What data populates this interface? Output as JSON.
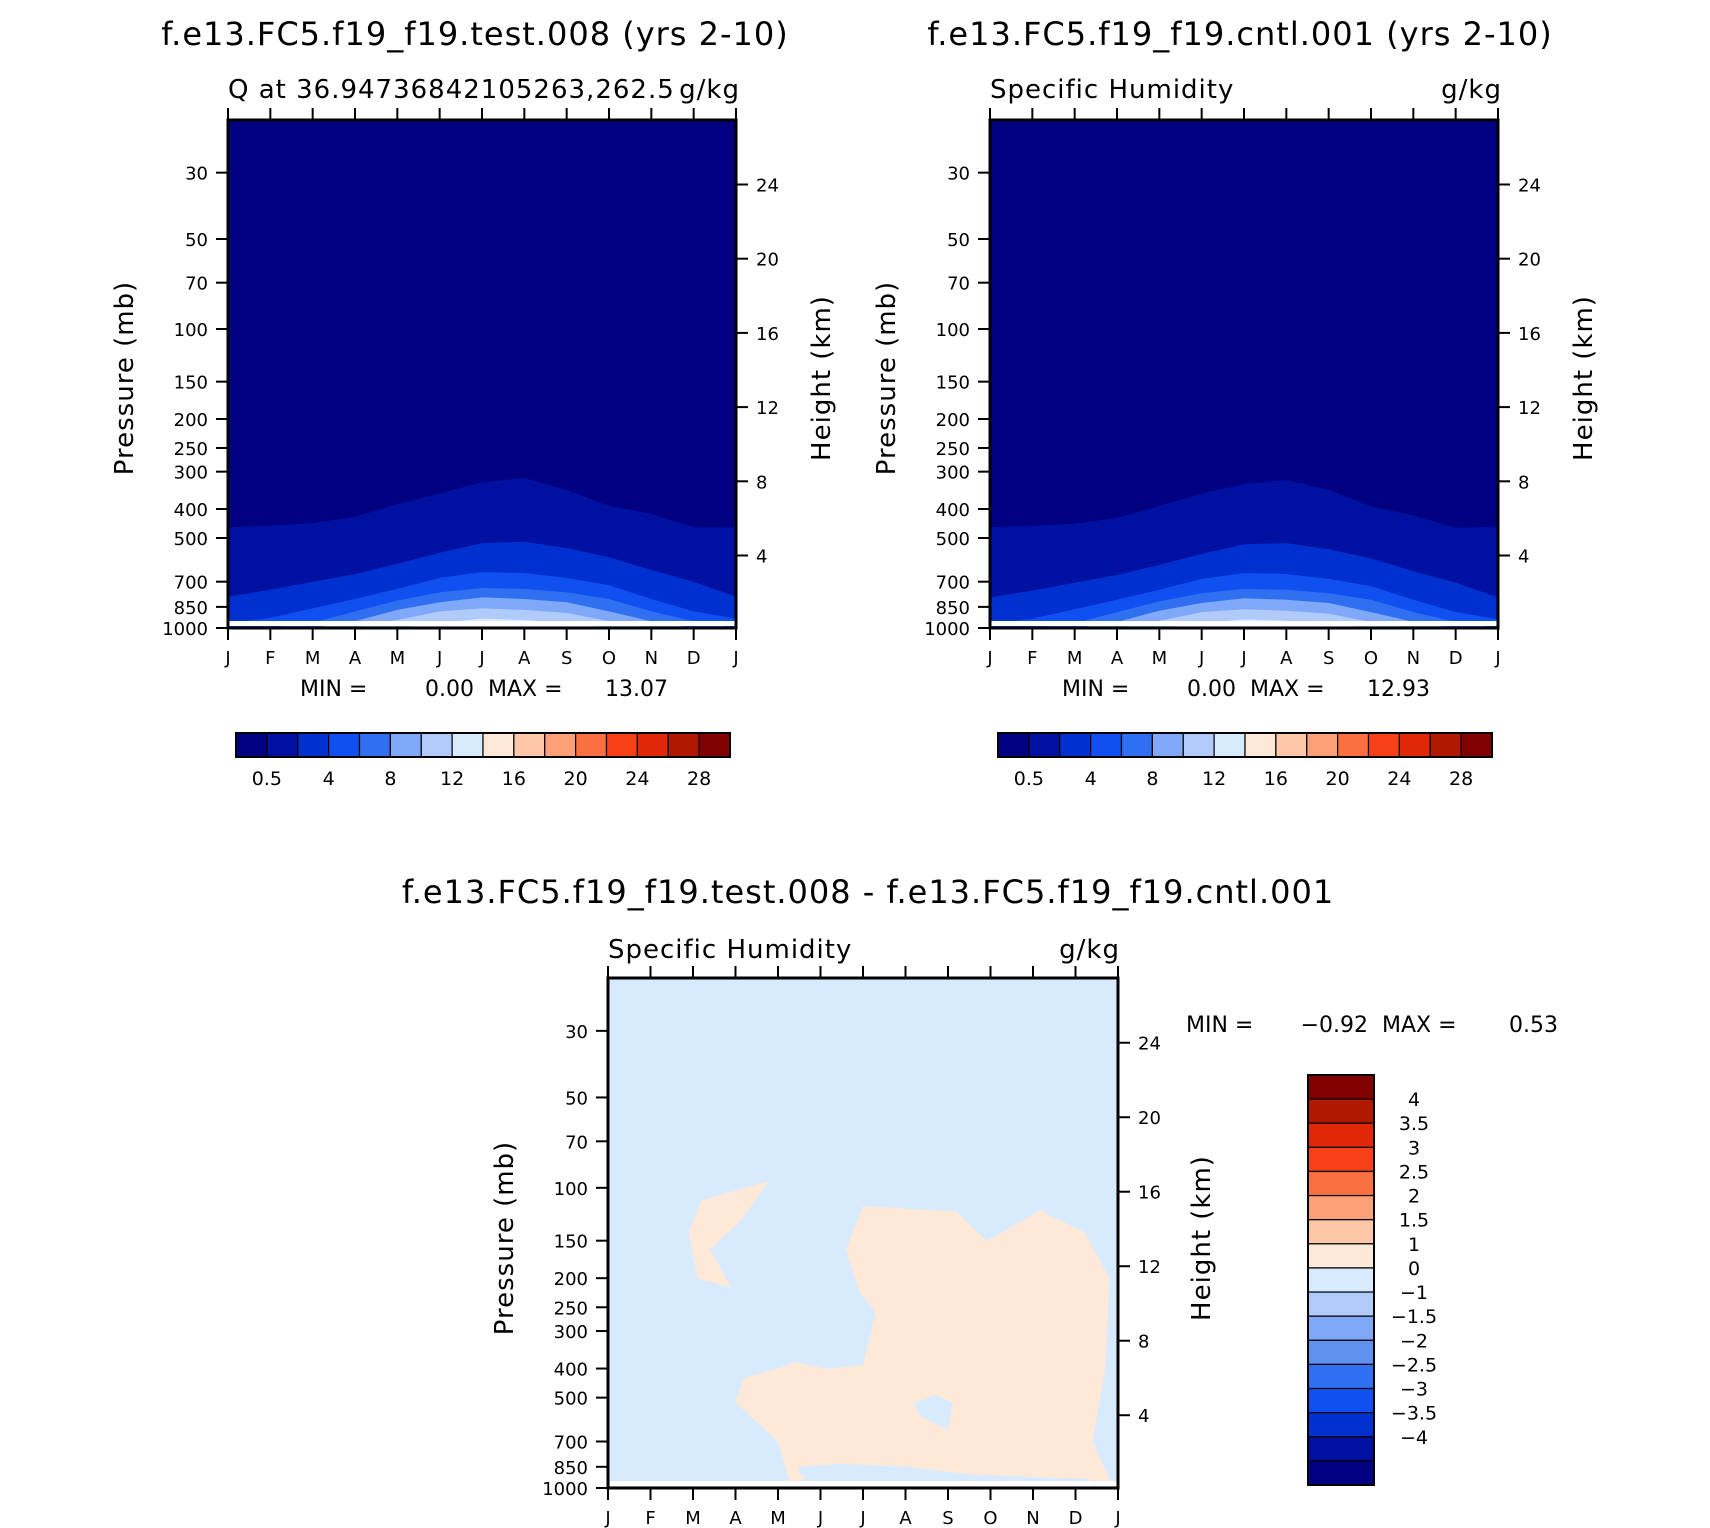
{
  "colors": {
    "seq_palette": [
      "#000080",
      "#0010a0",
      "#0030d0",
      "#1050f0",
      "#3070f0",
      "#80a8f8",
      "#b0cafa",
      "#d8eafe",
      "#fee8d8",
      "#fec8a8",
      "#fca078",
      "#fa7040",
      "#f84018",
      "#e02808",
      "#b01800",
      "#800000"
    ],
    "diff_palette": [
      "#000080",
      "#0010a0",
      "#0030d0",
      "#1050f0",
      "#3070f0",
      "#6090f0",
      "#80a8f8",
      "#b0cafa",
      "#d8eafe",
      "#fee8d8",
      "#fec8a8",
      "#fca078",
      "#fa7040",
      "#f84018",
      "#e02808",
      "#b01800",
      "#800000"
    ]
  },
  "chart_data": [
    {
      "type": "heatmap",
      "title": "f.e13.FC5.f19_f19.test.008 (yrs 2-10)",
      "left_subtitle": "Q at 36.94736842105263,262.5",
      "right_subtitle": "g/kg",
      "ylabel": "Pressure (mb)",
      "ylabel_right": "Height (km)",
      "x_ticks": [
        "J",
        "F",
        "M",
        "A",
        "M",
        "J",
        "J",
        "A",
        "S",
        "O",
        "N",
        "D",
        "J"
      ],
      "y_ticks": [
        30,
        50,
        70,
        100,
        150,
        200,
        250,
        300,
        400,
        500,
        700,
        850,
        1000
      ],
      "y_ticks_right": [
        4,
        8,
        12,
        16,
        20,
        24
      ],
      "ylim": [
        1000,
        20
      ],
      "y_scale": "log",
      "stats": {
        "min_label": "MIN =",
        "min": "0.00",
        "max_label": "MAX =",
        "max": "13.07"
      },
      "colorbar": {
        "orientation": "horizontal",
        "labels": [
          "0.5",
          "4",
          "8",
          "12",
          "16",
          "20",
          "24",
          "28"
        ],
        "levels": [
          0.5,
          2,
          4,
          6,
          8,
          10,
          12,
          14,
          16,
          18,
          20,
          22,
          24,
          26,
          28
        ]
      },
      "contour_pressure_by_month": {
        "months": [
          "J",
          "F",
          "M",
          "A",
          "M",
          "J",
          "J",
          "A",
          "S",
          "O",
          "N",
          "D",
          "J"
        ],
        "levels": {
          "0.5": [
            460,
            455,
            445,
            425,
            385,
            355,
            325,
            315,
            345,
            390,
            415,
            460,
            460
          ],
          "2": [
            785,
            745,
            700,
            660,
            610,
            560,
            520,
            515,
            540,
            580,
            640,
            700,
            785
          ],
          "4": [
            960,
            925,
            860,
            800,
            740,
            680,
            650,
            655,
            680,
            720,
            800,
            880,
            930
          ],
          "6": [
            1000,
            1000,
            960,
            880,
            810,
            760,
            735,
            740,
            760,
            800,
            880,
            950,
            1000
          ],
          "8": [
            1000,
            1000,
            1000,
            950,
            870,
            820,
            790,
            800,
            820,
            880,
            950,
            1000,
            1000
          ],
          "10": [
            1000,
            1000,
            1000,
            1000,
            940,
            880,
            860,
            870,
            890,
            950,
            1000,
            1000,
            1000
          ],
          "12": [
            1000,
            1000,
            1000,
            1000,
            1000,
            960,
            930,
            940,
            960,
            1000,
            1000,
            1000,
            1000
          ],
          "14": [
            1000,
            1000,
            1000,
            1000,
            1000,
            1000,
            985,
            990,
            1000,
            1000,
            1000,
            1000,
            1000
          ]
        }
      }
    },
    {
      "type": "heatmap",
      "title": "f.e13.FC5.f19_f19.cntl.001 (yrs 2-10)",
      "left_subtitle": "Specific Humidity",
      "right_subtitle": "g/kg",
      "ylabel": "Pressure (mb)",
      "ylabel_right": "Height (km)",
      "x_ticks": [
        "J",
        "F",
        "M",
        "A",
        "M",
        "J",
        "J",
        "A",
        "S",
        "O",
        "N",
        "D",
        "J"
      ],
      "y_ticks": [
        30,
        50,
        70,
        100,
        150,
        200,
        250,
        300,
        400,
        500,
        700,
        850,
        1000
      ],
      "y_ticks_right": [
        4,
        8,
        12,
        16,
        20,
        24
      ],
      "ylim": [
        1000,
        20
      ],
      "y_scale": "log",
      "stats": {
        "min_label": "MIN =",
        "min": "0.00",
        "max_label": "MAX =",
        "max": "12.93"
      },
      "colorbar": {
        "orientation": "horizontal",
        "labels": [
          "0.5",
          "4",
          "8",
          "12",
          "16",
          "20",
          "24",
          "28"
        ],
        "levels": [
          0.5,
          2,
          4,
          6,
          8,
          10,
          12,
          14,
          16,
          18,
          20,
          22,
          24,
          26,
          28
        ]
      },
      "contour_pressure_by_month": {
        "months": [
          "J",
          "F",
          "M",
          "A",
          "M",
          "J",
          "J",
          "A",
          "S",
          "O",
          "N",
          "D",
          "J"
        ],
        "levels": {
          "0.5": [
            460,
            455,
            448,
            428,
            390,
            355,
            330,
            320,
            345,
            392,
            420,
            462,
            458
          ],
          "2": [
            790,
            750,
            705,
            665,
            615,
            565,
            525,
            520,
            545,
            585,
            645,
            705,
            790
          ],
          "4": [
            965,
            930,
            865,
            805,
            745,
            685,
            655,
            660,
            685,
            725,
            805,
            885,
            935
          ],
          "6": [
            1000,
            1000,
            965,
            885,
            815,
            765,
            740,
            745,
            765,
            805,
            885,
            955,
            1000
          ],
          "8": [
            1000,
            1000,
            1000,
            955,
            875,
            825,
            795,
            805,
            825,
            885,
            955,
            1000,
            1000
          ],
          "10": [
            1000,
            1000,
            1000,
            1000,
            945,
            885,
            865,
            875,
            895,
            955,
            1000,
            1000,
            1000
          ],
          "12": [
            1000,
            1000,
            1000,
            1000,
            1000,
            965,
            935,
            945,
            965,
            1000,
            1000,
            1000,
            1000
          ],
          "14": [
            1000,
            1000,
            1000,
            1000,
            1000,
            1000,
            990,
            995,
            1000,
            1000,
            1000,
            1000,
            1000
          ]
        }
      }
    },
    {
      "type": "heatmap",
      "title": "f.e13.FC5.f19_f19.test.008 - f.e13.FC5.f19_f19.cntl.001",
      "left_subtitle": "Specific Humidity",
      "right_subtitle": "g/kg",
      "ylabel": "Pressure (mb)",
      "ylabel_right": "Height (km)",
      "x_ticks": [
        "J",
        "F",
        "M",
        "A",
        "M",
        "J",
        "J",
        "A",
        "S",
        "O",
        "N",
        "D",
        "J"
      ],
      "y_ticks": [
        30,
        50,
        70,
        100,
        150,
        200,
        250,
        300,
        400,
        500,
        700,
        850,
        1000
      ],
      "y_ticks_right": [
        4,
        8,
        12,
        16,
        20,
        24
      ],
      "ylim": [
        1000,
        20
      ],
      "y_scale": "log",
      "stats": {
        "min_label": "MIN =",
        "min": "-0.92",
        "max_label": "MAX =",
        "max": "0.53"
      },
      "colorbar": {
        "orientation": "vertical",
        "labels": [
          "4",
          "3.5",
          "3",
          "2.5",
          "2",
          "1.5",
          "1",
          "0",
          "-1",
          "-1.5",
          "-2",
          "-2.5",
          "-3",
          "-3.5",
          "-4"
        ]
      },
      "background_level": "-1 to 0",
      "positive_regions": [
        {
          "range": "0 to 1",
          "points_month_pressure": [
            [
              2.2,
              110
            ],
            [
              3.8,
              95
            ],
            [
              3.1,
              130
            ],
            [
              2.4,
              160
            ],
            [
              2.9,
              215
            ],
            [
              2.1,
              200
            ],
            [
              1.9,
              140
            ]
          ]
        },
        {
          "range": "0 to 1",
          "points_month_pressure": [
            [
              6.0,
              115
            ],
            [
              8.2,
              120
            ],
            [
              8.9,
              150
            ],
            [
              9.5,
              135
            ],
            [
              10.2,
              118
            ],
            [
              11.3,
              160
            ],
            [
              11.1,
              250
            ],
            [
              10.5,
              500
            ],
            [
              10.8,
              750
            ],
            [
              11.3,
              935
            ],
            [
              8.5,
              900
            ],
            [
              7.9,
              880
            ],
            [
              6.0,
              850
            ],
            [
              4.8,
              900
            ],
            [
              4.3,
              980
            ],
            [
              4.0,
              700
            ],
            [
              3.0,
              520
            ],
            [
              3.2,
              430
            ],
            [
              4.0,
              400
            ],
            [
              4.4,
              380
            ],
            [
              5.1,
              400
            ],
            [
              6.0,
              390
            ],
            [
              6.1,
              340
            ],
            [
              6.3,
              260
            ],
            [
              5.9,
              220
            ],
            [
              5.6,
              160
            ]
          ]
        },
        {
          "range": "0 to 1",
          "points_month_pressure": [
            [
              10.2,
              120
            ],
            [
              10.5,
              500
            ],
            [
              10.8,
              750
            ],
            [
              11.3,
              935
            ],
            [
              11.9,
              1000
            ],
            [
              11.4,
              700
            ],
            [
              11.7,
              400
            ],
            [
              11.8,
              200
            ],
            [
              11.2,
              140
            ],
            [
              10.2,
              120
            ]
          ]
        }
      ],
      "negative_islands_inside_positive": [
        {
          "range": "-1 to 0",
          "points_month_pressure": [
            [
              7.2,
              520
            ],
            [
              7.7,
              490
            ],
            [
              8.1,
              520
            ],
            [
              8.0,
              640
            ],
            [
              7.7,
              610
            ],
            [
              7.3,
              570
            ]
          ]
        },
        {
          "range": "-1 to 0",
          "points_month_pressure": [
            [
              4.5,
              850
            ],
            [
              5.5,
              830
            ],
            [
              7.0,
              850
            ],
            [
              8.5,
              900
            ],
            [
              8.5,
              990
            ],
            [
              6.5,
              990
            ],
            [
              5.0,
              950
            ],
            [
              4.5,
              900
            ]
          ]
        }
      ]
    }
  ]
}
